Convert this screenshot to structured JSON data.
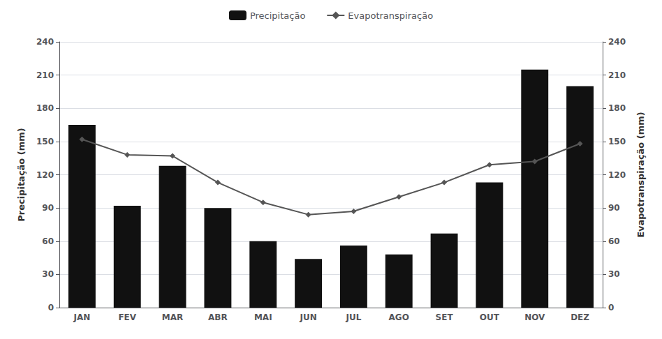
{
  "chart_data": {
    "type": "bar",
    "categories": [
      "JAN",
      "FEV",
      "MAR",
      "ABR",
      "MAI",
      "JUN",
      "JUL",
      "AGO",
      "SET",
      "OUT",
      "NOV",
      "DEZ"
    ],
    "series": [
      {
        "name": "Precipitação",
        "type": "bar",
        "color": "#111111",
        "values": [
          165,
          92,
          128,
          90,
          60,
          44,
          56,
          48,
          67,
          113,
          215,
          200
        ]
      },
      {
        "name": "Evapotranspiração",
        "type": "line",
        "color": "#555555",
        "marker": "diamond",
        "axis": "y2",
        "values": [
          152,
          138,
          137,
          113,
          95,
          84,
          87,
          100,
          113,
          129,
          132,
          148
        ]
      }
    ],
    "ylabel": "Precipitação (mm)",
    "y2label": "Evapotranspiração (mm)",
    "ylim": [
      0,
      240
    ],
    "yticks": [
      0,
      30,
      60,
      90,
      120,
      150,
      180,
      210,
      240
    ],
    "y2lim": [
      0,
      240
    ],
    "y2ticks": [
      0,
      30,
      60,
      90,
      120,
      150,
      180,
      210,
      240
    ],
    "grid": true,
    "legend": "top"
  }
}
